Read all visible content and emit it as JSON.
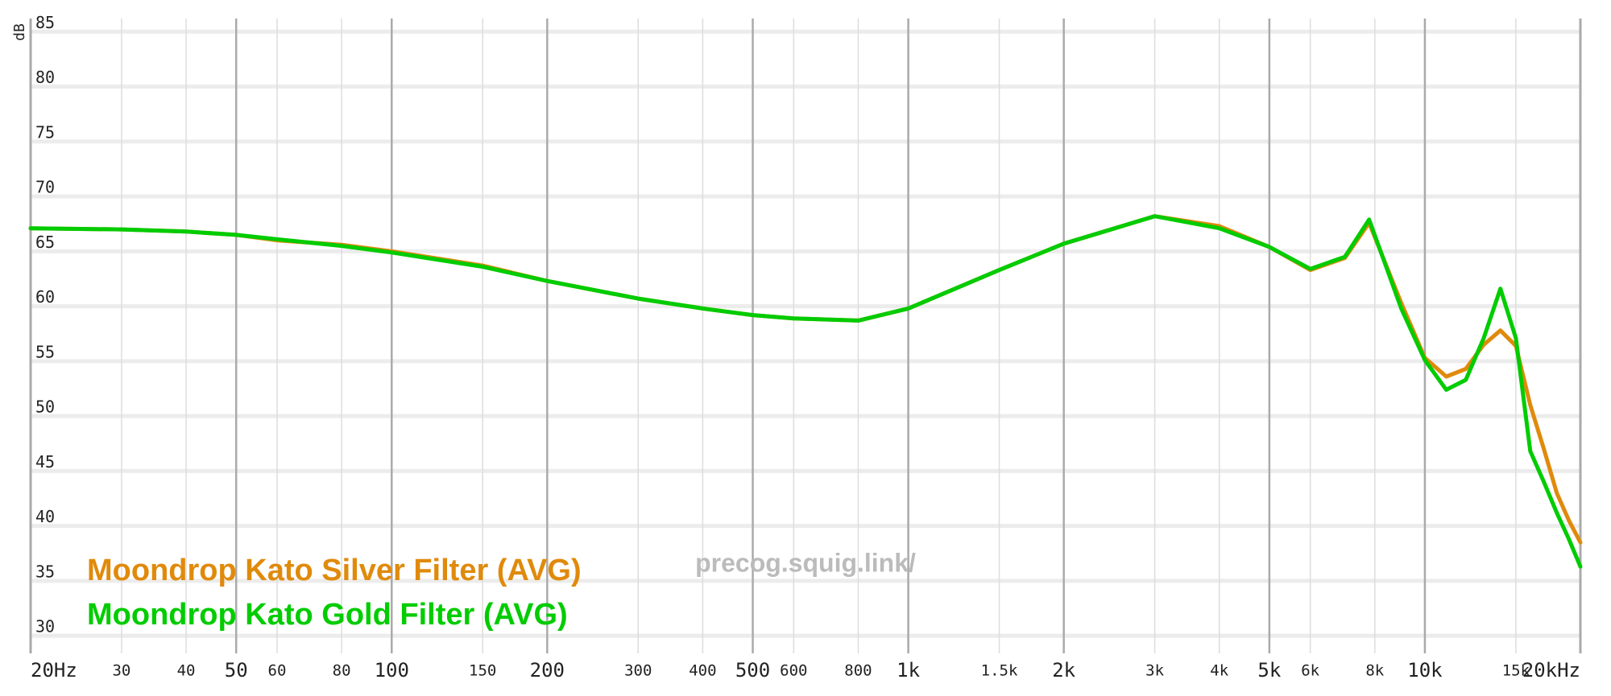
{
  "chart_data": {
    "type": "line",
    "y_label": "dB",
    "watermark": "precog.squig.link/",
    "x_scale": "log",
    "grid": true,
    "legend": "bottom-left",
    "x": [
      20,
      30,
      40,
      50,
      60,
      80,
      100,
      150,
      200,
      300,
      400,
      500,
      600,
      800,
      1000,
      1500,
      2000,
      3000,
      4000,
      5000,
      6000,
      7000,
      7800,
      9000,
      10000,
      11000,
      12000,
      13000,
      14000,
      15000,
      16000,
      17000,
      18000,
      19000,
      20000
    ],
    "series": [
      {
        "name": "Moondrop Kato Silver Filter (AVG)",
        "color": "#e08a0c",
        "values": [
          67.1,
          67.0,
          66.8,
          66.5,
          66.0,
          65.6,
          65.0,
          63.7,
          62.3,
          60.7,
          59.8,
          59.2,
          58.9,
          58.7,
          59.8,
          63.3,
          65.7,
          68.2,
          67.3,
          65.4,
          63.3,
          64.4,
          67.6,
          60.3,
          55.3,
          53.6,
          54.3,
          56.5,
          57.8,
          56.4,
          51.0,
          47.0,
          43.0,
          40.5,
          38.5
        ]
      },
      {
        "name": "Moondrop Kato Gold Filter (AVG)",
        "color": "#00cc00",
        "values": [
          67.1,
          67.0,
          66.8,
          66.5,
          66.1,
          65.5,
          64.9,
          63.6,
          62.3,
          60.7,
          59.8,
          59.2,
          58.9,
          58.7,
          59.8,
          63.3,
          65.7,
          68.2,
          67.1,
          65.4,
          63.4,
          64.5,
          67.9,
          59.8,
          55.1,
          52.4,
          53.3,
          57.1,
          61.6,
          57.1,
          46.8,
          44.0,
          41.2,
          38.8,
          36.3
        ]
      }
    ],
    "xlim": [
      20,
      20000
    ],
    "xticks": [
      {
        "value": 20,
        "label": "20Hz"
      },
      30,
      40,
      50,
      60,
      80,
      100,
      150,
      200,
      300,
      400,
      500,
      600,
      800,
      {
        "value": 1000,
        "label": "1k"
      },
      {
        "value": 1500,
        "label": "1.5k"
      },
      {
        "value": 2000,
        "label": "2k"
      },
      {
        "value": 3000,
        "label": "3k"
      },
      {
        "value": 4000,
        "label": "4k"
      },
      {
        "value": 5000,
        "label": "5k"
      },
      {
        "value": 6000,
        "label": "6k"
      },
      {
        "value": 8000,
        "label": "8k"
      },
      {
        "value": 10000,
        "label": "10k"
      },
      {
        "value": 15000,
        "label": "15k"
      },
      {
        "value": 20000,
        "label": "20kHz"
      }
    ],
    "ylim": [
      28.4,
      86.2
    ],
    "yticks": [
      30,
      35,
      40,
      45,
      50,
      55,
      60,
      65,
      70,
      75,
      80,
      85
    ]
  }
}
